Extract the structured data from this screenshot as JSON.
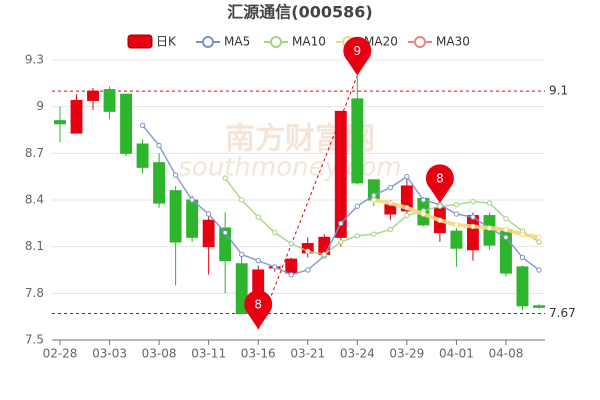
{
  "chart_data": {
    "type": "candlestick",
    "title": "汇源通信(000586)",
    "watermark": "南方财富网",
    "watermark_sub": "southmoney.com",
    "categories": [
      "02-28",
      null,
      null,
      "03-03",
      null,
      null,
      "03-08",
      null,
      null,
      "03-11",
      null,
      null,
      "03-16",
      null,
      null,
      "03-21",
      null,
      null,
      "03-24",
      null,
      null,
      "03-29",
      null,
      null,
      "04-01",
      null,
      null,
      "04-08",
      null,
      null
    ],
    "series": [
      {
        "name": "日K",
        "up_color": "#e60012",
        "down_color": "#2db52d",
        "open": [
          8.91,
          8.83,
          9.04,
          9.11,
          9.08,
          8.76,
          8.64,
          8.46,
          8.4,
          8.1,
          8.22,
          7.99,
          7.67,
          7.97,
          7.93,
          8.06,
          8.05,
          8.16,
          9.05,
          8.53,
          8.31,
          8.33,
          8.41,
          8.19,
          8.2,
          8.08,
          8.3,
          8.21,
          7.97,
          7.72
        ],
        "close": [
          8.89,
          9.04,
          9.1,
          8.97,
          8.7,
          8.61,
          8.38,
          8.13,
          8.16,
          8.27,
          8.01,
          7.67,
          7.95,
          7.97,
          8.02,
          8.12,
          8.16,
          8.97,
          8.51,
          8.4,
          8.37,
          8.49,
          8.24,
          8.35,
          8.09,
          8.3,
          8.11,
          7.93,
          7.72,
          7.71
        ],
        "high": [
          9.0,
          9.08,
          9.12,
          9.13,
          9.08,
          8.79,
          8.7,
          8.49,
          8.43,
          8.3,
          8.32,
          8.04,
          7.98,
          7.98,
          8.03,
          8.16,
          8.18,
          8.97,
          9.2,
          8.53,
          8.4,
          8.54,
          8.42,
          8.38,
          8.22,
          8.32,
          8.32,
          8.22,
          7.98,
          7.73
        ],
        "low": [
          8.77,
          8.83,
          8.98,
          8.92,
          8.68,
          8.57,
          8.35,
          7.85,
          8.13,
          7.92,
          7.8,
          7.67,
          7.57,
          7.94,
          7.92,
          8.03,
          8.03,
          8.1,
          8.5,
          8.36,
          8.27,
          8.31,
          8.23,
          8.13,
          7.97,
          8.01,
          8.08,
          7.91,
          7.69,
          7.7
        ]
      },
      {
        "name": "MA5",
        "color": "#7b92cf",
        "values": [
          null,
          null,
          null,
          null,
          null,
          8.88,
          8.75,
          8.56,
          8.4,
          8.31,
          8.19,
          8.05,
          8.01,
          7.97,
          7.92,
          7.95,
          8.04,
          8.25,
          8.36,
          8.43,
          8.48,
          8.55,
          8.4,
          8.37,
          8.31,
          8.29,
          8.22,
          8.16,
          8.03,
          7.95
        ]
      },
      {
        "name": "MA10",
        "color": "#a4d37f",
        "values": [
          null,
          null,
          null,
          null,
          null,
          null,
          null,
          null,
          null,
          null,
          8.54,
          8.4,
          8.29,
          8.19,
          8.12,
          8.07,
          8.05,
          8.13,
          8.17,
          8.18,
          8.21,
          8.3,
          8.33,
          8.36,
          8.37,
          8.39,
          8.38,
          8.28,
          8.2,
          8.13
        ]
      },
      {
        "name": "MA20",
        "color": "#f7d77d",
        "values": [
          null,
          null,
          null,
          null,
          null,
          null,
          null,
          null,
          null,
          null,
          null,
          null,
          null,
          null,
          null,
          null,
          null,
          null,
          null,
          8.4,
          8.38,
          8.35,
          8.31,
          8.27,
          8.24,
          8.23,
          8.22,
          8.21,
          8.18,
          8.16
        ]
      },
      {
        "name": "MA30",
        "color": "#f08080",
        "values": [
          null,
          null,
          null,
          null,
          null,
          null,
          null,
          null,
          null,
          null,
          null,
          null,
          null,
          null,
          null,
          null,
          null,
          null,
          null,
          null,
          null,
          null,
          null,
          null,
          null,
          null,
          null,
          null,
          null,
          null
        ]
      }
    ],
    "ylim": [
      7.5,
      9.3
    ],
    "yticks": [
      7.5,
      7.8,
      8.1,
      8.4,
      8.7,
      9,
      9.3
    ],
    "grid": true,
    "mark_lines": [
      {
        "value": 9.1
      },
      {
        "value": 7.67
      }
    ],
    "pins": [
      {
        "label": "8",
        "index": 12,
        "value": 7.57
      },
      {
        "label": "9",
        "index": 18,
        "value": 9.2
      },
      {
        "label": "8",
        "index": 23,
        "value": 8.38
      }
    ]
  }
}
